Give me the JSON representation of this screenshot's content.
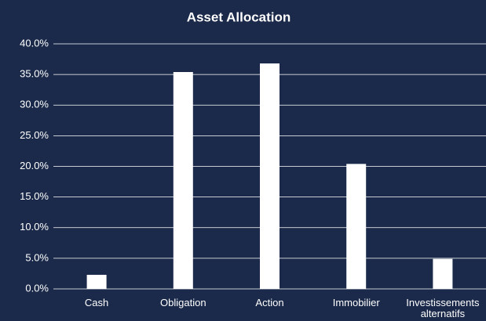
{
  "chart_data": {
    "type": "bar",
    "title": "Asset Allocation",
    "categories": [
      "Cash",
      "Obligation",
      "Action",
      "Immobilier",
      "Investissements alternatifs"
    ],
    "values": [
      2.3,
      35.4,
      36.8,
      20.4,
      4.9
    ],
    "color": "#ffffff",
    "ylim": [
      0,
      40
    ],
    "yticks": [
      {
        "value": 0,
        "label": "0.0%"
      },
      {
        "value": 5,
        "label": "5.0%"
      },
      {
        "value": 10,
        "label": "10.0%"
      },
      {
        "value": 15,
        "label": "15.0%"
      },
      {
        "value": 20,
        "label": "20.0%"
      },
      {
        "value": 25,
        "label": "25.0%"
      },
      {
        "value": 30,
        "label": "30.0%"
      },
      {
        "value": 35,
        "label": "35.0%"
      },
      {
        "value": 40,
        "label": "40.0%"
      }
    ],
    "grid": true
  }
}
